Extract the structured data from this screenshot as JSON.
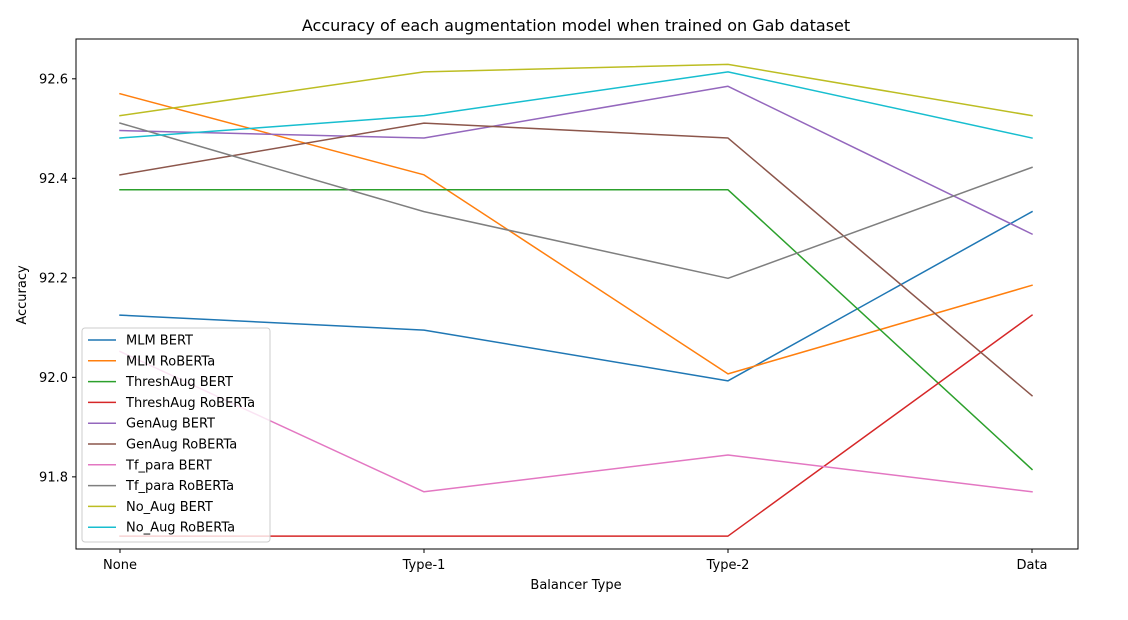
{
  "chart_data": {
    "type": "line",
    "title": "Accuracy of each augmentation model when trained on Gab dataset",
    "xlabel": "Balancer Type",
    "ylabel": "Accuracy",
    "categories": [
      "None",
      "Type-1",
      "Type-2",
      "Data"
    ],
    "ylim": [
      91.655,
      92.68
    ],
    "yticks": [
      91.8,
      92.0,
      92.2,
      92.4,
      92.6
    ],
    "ytick_labels": [
      "91.8",
      "92.0",
      "92.2",
      "92.4",
      "92.6"
    ],
    "grid": false,
    "legend_placement": "bottom-left",
    "series": [
      {
        "name": "MLM BERT",
        "color": "#1f77b4",
        "values": [
          92.125,
          92.095,
          91.993,
          92.333
        ]
      },
      {
        "name": "MLM RoBERTa",
        "color": "#ff7f0e",
        "values": [
          92.57,
          92.407,
          92.007,
          92.185
        ]
      },
      {
        "name": "ThreshAug BERT",
        "color": "#2ca02c",
        "values": [
          92.377,
          92.377,
          92.377,
          91.815
        ]
      },
      {
        "name": "ThreshAug RoBERTa",
        "color": "#d62728",
        "values": [
          91.681,
          91.681,
          91.681,
          92.125
        ]
      },
      {
        "name": "GenAug BERT",
        "color": "#9467bd",
        "values": [
          92.496,
          92.481,
          92.585,
          92.288
        ]
      },
      {
        "name": "GenAug RoBERTa",
        "color": "#8c564b",
        "values": [
          92.407,
          92.511,
          92.481,
          91.963
        ]
      },
      {
        "name": "Tf_para BERT",
        "color": "#e377c2",
        "values": [
          92.052,
          91.77,
          91.844,
          91.77
        ]
      },
      {
        "name": "Tf_para RoBERTa",
        "color": "#7f7f7f",
        "values": [
          92.511,
          92.333,
          92.199,
          92.422
        ]
      },
      {
        "name": "No_Aug BERT",
        "color": "#bcbd22",
        "values": [
          92.526,
          92.614,
          92.629,
          92.526
        ]
      },
      {
        "name": "No_Aug RoBERTa",
        "color": "#17becf",
        "values": [
          92.481,
          92.526,
          92.614,
          92.481
        ]
      }
    ]
  }
}
